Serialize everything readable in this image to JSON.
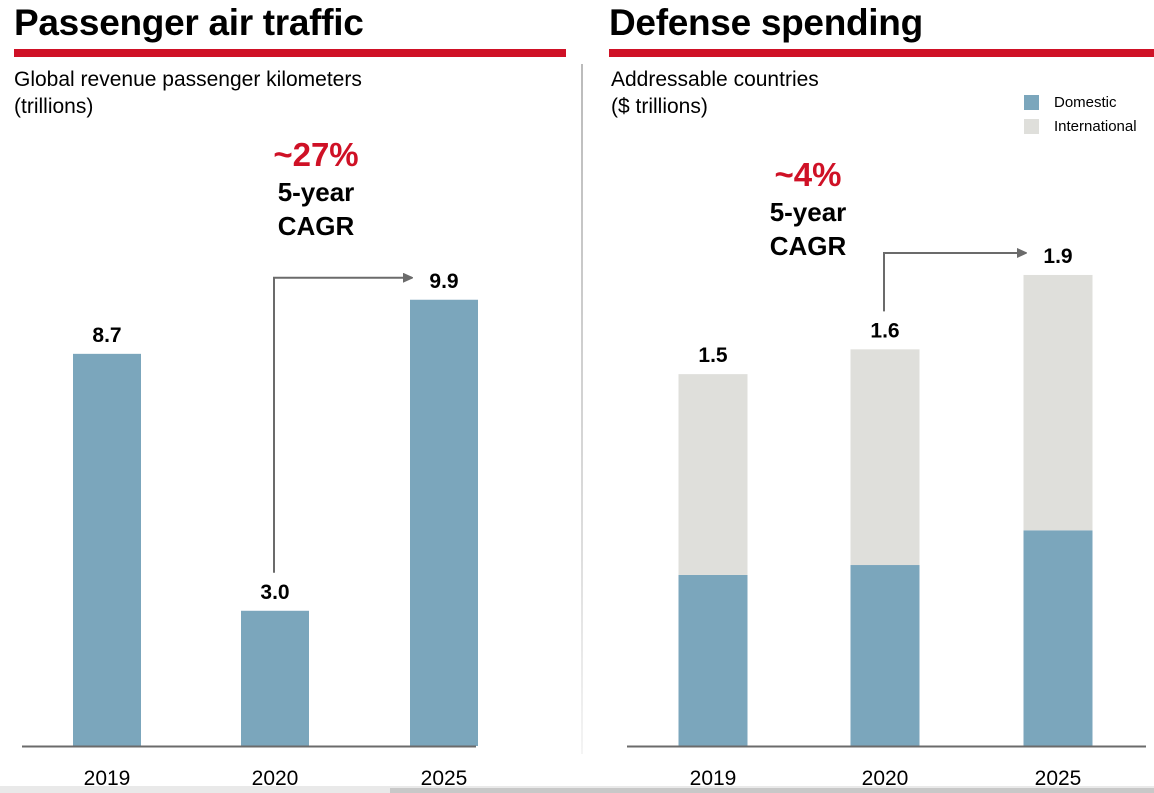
{
  "colors": {
    "accent_red": "#cf1126",
    "domestic": "#7ba6bc",
    "international": "#dfdfdb",
    "axis": "#6b6b6b",
    "arrow": "#6b6b6b"
  },
  "chart_data": [
    {
      "type": "bar",
      "title": "Passenger air traffic",
      "subtitle": [
        "Global revenue passenger kilometers",
        "(trillions)"
      ],
      "xlabel": "",
      "ylabel": "",
      "categories": [
        "2019",
        "2020",
        "2025"
      ],
      "values": [
        8.7,
        3.0,
        9.9
      ],
      "data_labels": [
        "8.7",
        "3.0",
        "9.9"
      ],
      "ylim": [
        0,
        13.2
      ],
      "grid": false,
      "annotation": {
        "value": "~27%",
        "lines": [
          "5-year",
          "CAGR"
        ],
        "arrow_from": "2020",
        "arrow_to": "2025"
      }
    },
    {
      "type": "bar",
      "stacked": true,
      "title": "Defense spending",
      "subtitle": [
        "Addressable countries",
        "($ trillions)"
      ],
      "xlabel": "",
      "ylabel": "",
      "categories": [
        "2019",
        "2020",
        "2025"
      ],
      "series": [
        {
          "name": "Domestic",
          "values": [
            0.69,
            0.73,
            0.87
          ]
        },
        {
          "name": "International",
          "values": [
            0.81,
            0.87,
            1.03
          ]
        }
      ],
      "totals": [
        1.5,
        1.6,
        1.9
      ],
      "data_labels": [
        "1.5",
        "1.6",
        "1.9"
      ],
      "ylim": [
        0,
        2.4
      ],
      "grid": false,
      "legend": {
        "position": "top-right",
        "entries": [
          "Domestic",
          "International"
        ]
      },
      "annotation": {
        "value": "~4%",
        "lines": [
          "5-year",
          "CAGR"
        ],
        "arrow_from": "2020",
        "arrow_to": "2025"
      }
    }
  ]
}
